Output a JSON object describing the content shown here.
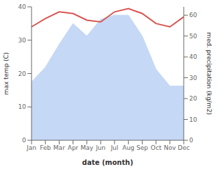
{
  "chart_data": {
    "type": "combo",
    "categories": [
      "Jan",
      "Feb",
      "Mar",
      "Apr",
      "May",
      "Jun",
      "Jul",
      "Aug",
      "Sep",
      "Oct",
      "Nov",
      "Dec"
    ],
    "series": [
      {
        "type": "area",
        "axis": "y2",
        "color": "#c5d8f5",
        "values": [
          28,
          35,
          46,
          56,
          50,
          58,
          60,
          60,
          50,
          34,
          26,
          26
        ]
      },
      {
        "type": "line",
        "color": "#d9534f",
        "values": [
          34,
          36.5,
          38.5,
          38,
          36,
          35.5,
          38.5,
          39.5,
          38,
          35,
          34,
          37
        ]
      }
    ],
    "xlabel": "date (month)",
    "ylabel": "max temp (C)",
    "y2label": "med. precipitation (kg/m2)",
    "ylim": [
      0,
      40
    ],
    "yticks": [
      0,
      10,
      20,
      30,
      40
    ],
    "y2lim": [
      0,
      64
    ],
    "y2ticks": [
      0,
      10,
      20,
      30,
      40,
      50,
      60
    ],
    "grid": false
  }
}
